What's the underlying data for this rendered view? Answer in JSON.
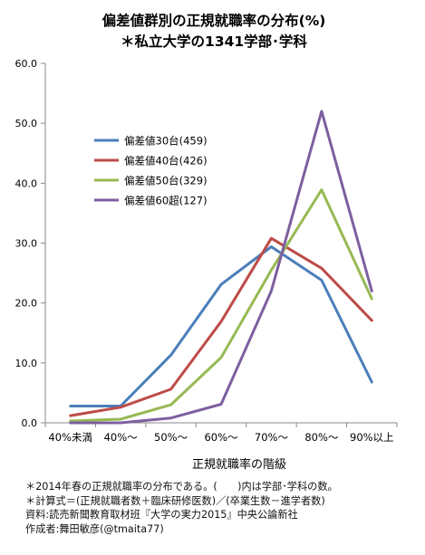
{
  "chart_data": {
    "type": "line",
    "title": "偏差値群別の正規就職率の分布(%)",
    "subtitle": "＊私立大学の1341学部･学科",
    "xlabel": "正規就職率の階級",
    "ylabel": "",
    "categories": [
      "40%未満",
      "40%～",
      "50%～",
      "60%～",
      "70%～",
      "80%～",
      "90%以上"
    ],
    "ylim": [
      0,
      60
    ],
    "yticks": [
      "0.0",
      "10.0",
      "20.0",
      "30.0",
      "40.0",
      "50.0",
      "60.0"
    ],
    "grid": false,
    "legend_position": "upper-left-inside",
    "series": [
      {
        "name": "偏差値30台(459)",
        "color": "#4a7ebb",
        "values": [
          2.8,
          2.8,
          11.3,
          23.1,
          29.4,
          23.8,
          6.8
        ]
      },
      {
        "name": "偏差値40台(426)",
        "color": "#be4b48",
        "values": [
          1.2,
          2.6,
          5.6,
          16.9,
          30.8,
          25.8,
          17.1
        ]
      },
      {
        "name": "偏差値50台(329)",
        "color": "#98b954",
        "values": [
          0.3,
          0.6,
          3.0,
          10.9,
          25.5,
          38.9,
          20.7
        ]
      },
      {
        "name": "偏差値60超(127)",
        "color": "#7d5fa0",
        "values": [
          0.0,
          0.0,
          0.8,
          3.1,
          22.0,
          52.0,
          22.0
        ]
      }
    ]
  },
  "notes": [
    "＊2014年春の正規就職率の分布である。(　　)内は学部･学科の数。",
    "＊計算式＝(正規就職者数＋臨床研修医数)／(卒業生数－進学者数)",
    "資料:読売新聞教育取材班『大学の実力2015』中央公論新社",
    "作成者:舞田敏彦(@tmaita77)"
  ]
}
